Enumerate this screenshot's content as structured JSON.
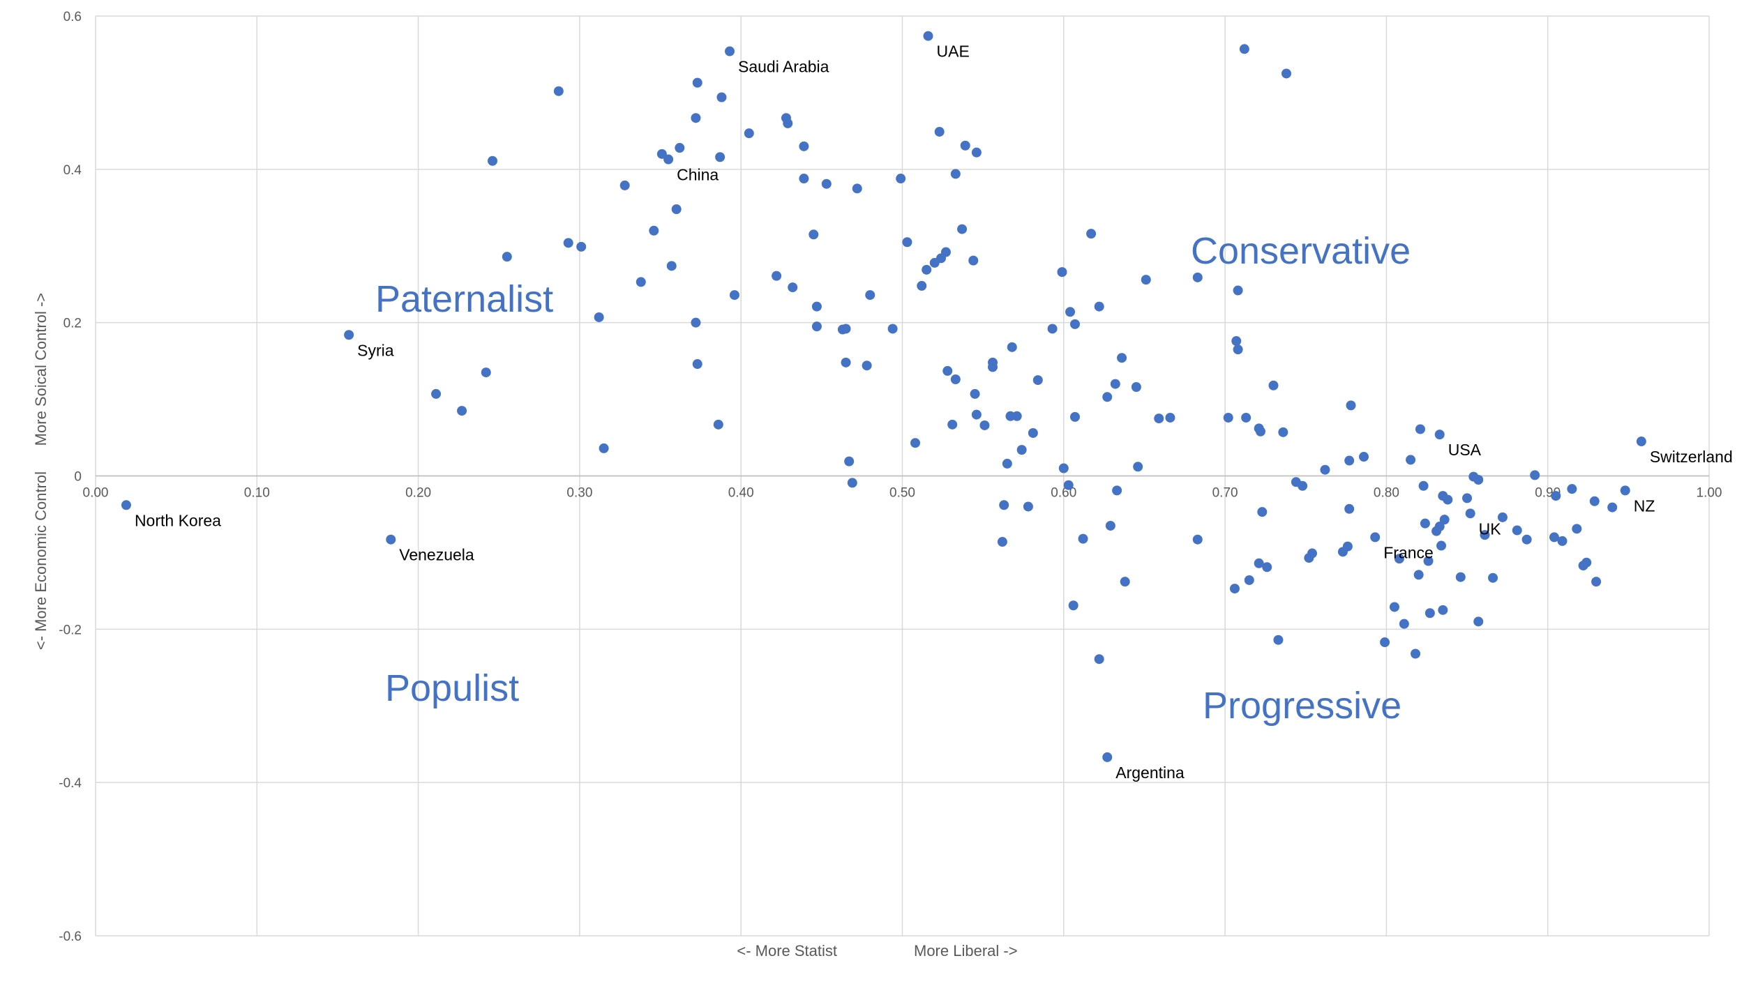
{
  "chart_data": {
    "type": "scatter",
    "xlabel_left": "<- More Statist",
    "xlabel_right": "More Liberal ->",
    "ylabel": "<- More Economic Control      More Soical Control ->",
    "xlim": [
      0.0,
      1.0
    ],
    "ylim": [
      -0.6,
      0.6
    ],
    "x_ticks": [
      "0.00",
      "0.10",
      "0.20",
      "0.30",
      "0.40",
      "0.50",
      "0.60",
      "0.70",
      "0.80",
      "0.90",
      "1.00"
    ],
    "y_ticks": [
      "0.6",
      "0.4",
      "0.2",
      "0",
      "-0.2",
      "-0.4",
      "-0.6"
    ],
    "grid": true,
    "marker_color": "#4472c4",
    "quadrant_labels": {
      "paternalist": "Paternalist",
      "conservative": "Conservative",
      "populist": "Populist",
      "progressive": "Progressive"
    },
    "labeled_points": [
      {
        "label": "North Korea",
        "x": 0.019,
        "y": -0.038
      },
      {
        "label": "Syria",
        "x": 0.157,
        "y": 0.184
      },
      {
        "label": "Venezuela",
        "x": 0.183,
        "y": -0.083
      },
      {
        "label": "Saudi Arabia",
        "x": 0.393,
        "y": 0.554
      },
      {
        "label": "China",
        "x": 0.355,
        "y": 0.413
      },
      {
        "label": "UAE",
        "x": 0.516,
        "y": 0.574
      },
      {
        "label": "Argentina",
        "x": 0.627,
        "y": -0.367
      },
      {
        "label": "USA",
        "x": 0.833,
        "y": 0.054
      },
      {
        "label": "Switzerland",
        "x": 0.958,
        "y": 0.045
      },
      {
        "label": "NZ",
        "x": 0.948,
        "y": -0.019
      },
      {
        "label": "UK",
        "x": 0.852,
        "y": -0.049
      },
      {
        "label": "France",
        "x": 0.793,
        "y": -0.08
      }
    ],
    "points": [
      [
        0.287,
        0.502
      ],
      [
        0.373,
        0.513
      ],
      [
        0.388,
        0.494
      ],
      [
        0.372,
        0.467
      ],
      [
        0.246,
        0.411
      ],
      [
        0.351,
        0.42
      ],
      [
        0.362,
        0.428
      ],
      [
        0.387,
        0.416
      ],
      [
        0.405,
        0.447
      ],
      [
        0.428,
        0.467
      ],
      [
        0.429,
        0.46
      ],
      [
        0.439,
        0.43
      ],
      [
        0.439,
        0.388
      ],
      [
        0.453,
        0.381
      ],
      [
        0.472,
        0.375
      ],
      [
        0.499,
        0.388
      ],
      [
        0.328,
        0.379
      ],
      [
        0.36,
        0.348
      ],
      [
        0.346,
        0.32
      ],
      [
        0.445,
        0.315
      ],
      [
        0.503,
        0.305
      ],
      [
        0.293,
        0.304
      ],
      [
        0.301,
        0.299
      ],
      [
        0.255,
        0.286
      ],
      [
        0.357,
        0.274
      ],
      [
        0.338,
        0.253
      ],
      [
        0.396,
        0.236
      ],
      [
        0.422,
        0.261
      ],
      [
        0.432,
        0.246
      ],
      [
        0.447,
        0.221
      ],
      [
        0.48,
        0.236
      ],
      [
        0.312,
        0.207
      ],
      [
        0.372,
        0.2
      ],
      [
        0.447,
        0.195
      ],
      [
        0.463,
        0.191
      ],
      [
        0.465,
        0.192
      ],
      [
        0.494,
        0.192
      ],
      [
        0.373,
        0.146
      ],
      [
        0.465,
        0.148
      ],
      [
        0.478,
        0.144
      ],
      [
        0.242,
        0.135
      ],
      [
        0.211,
        0.107
      ],
      [
        0.227,
        0.085
      ],
      [
        0.386,
        0.067
      ],
      [
        0.315,
        0.036
      ],
      [
        0.467,
        0.019
      ],
      [
        0.469,
        -0.009
      ],
      [
        0.508,
        0.043
      ],
      [
        0.523,
        0.449
      ],
      [
        0.539,
        0.431
      ],
      [
        0.546,
        0.422
      ],
      [
        0.533,
        0.394
      ],
      [
        0.537,
        0.322
      ],
      [
        0.527,
        0.292
      ],
      [
        0.524,
        0.284
      ],
      [
        0.52,
        0.278
      ],
      [
        0.544,
        0.281
      ],
      [
        0.515,
        0.269
      ],
      [
        0.512,
        0.248
      ],
      [
        0.556,
        0.148
      ],
      [
        0.556,
        0.142
      ],
      [
        0.568,
        0.168
      ],
      [
        0.528,
        0.137
      ],
      [
        0.533,
        0.126
      ],
      [
        0.545,
        0.107
      ],
      [
        0.546,
        0.08
      ],
      [
        0.531,
        0.067
      ],
      [
        0.551,
        0.066
      ],
      [
        0.567,
        0.078
      ],
      [
        0.571,
        0.078
      ],
      [
        0.581,
        0.056
      ],
      [
        0.584,
        0.125
      ],
      [
        0.593,
        0.192
      ],
      [
        0.574,
        0.034
      ],
      [
        0.565,
        0.016
      ],
      [
        0.599,
        0.266
      ],
      [
        0.604,
        0.214
      ],
      [
        0.607,
        0.198
      ],
      [
        0.617,
        0.316
      ],
      [
        0.622,
        0.221
      ],
      [
        0.627,
        0.103
      ],
      [
        0.632,
        0.12
      ],
      [
        0.636,
        0.154
      ],
      [
        0.645,
        0.116
      ],
      [
        0.607,
        0.077
      ],
      [
        0.6,
        0.01
      ],
      [
        0.603,
        -0.012
      ],
      [
        0.563,
        -0.038
      ],
      [
        0.578,
        -0.04
      ],
      [
        0.562,
        -0.086
      ],
      [
        0.612,
        -0.082
      ],
      [
        0.629,
        -0.065
      ],
      [
        0.633,
        -0.019
      ],
      [
        0.638,
        -0.138
      ],
      [
        0.606,
        -0.169
      ],
      [
        0.622,
        -0.239
      ],
      [
        0.651,
        0.256
      ],
      [
        0.659,
        0.075
      ],
      [
        0.666,
        0.076
      ],
      [
        0.646,
        0.012
      ],
      [
        0.683,
        0.259
      ],
      [
        0.708,
        0.242
      ],
      [
        0.707,
        0.176
      ],
      [
        0.708,
        0.165
      ],
      [
        0.702,
        0.076
      ],
      [
        0.713,
        0.076
      ],
      [
        0.721,
        0.062
      ],
      [
        0.722,
        0.058
      ],
      [
        0.73,
        0.118
      ],
      [
        0.736,
        0.057
      ],
      [
        0.712,
        0.557
      ],
      [
        0.738,
        0.525
      ],
      [
        0.683,
        -0.083
      ],
      [
        0.723,
        -0.047
      ],
      [
        0.706,
        -0.147
      ],
      [
        0.715,
        -0.136
      ],
      [
        0.721,
        -0.114
      ],
      [
        0.726,
        -0.119
      ],
      [
        0.733,
        -0.214
      ],
      [
        0.744,
        -0.008
      ],
      [
        0.748,
        -0.013
      ],
      [
        0.752,
        -0.107
      ],
      [
        0.754,
        -0.101
      ],
      [
        0.762,
        0.008
      ],
      [
        0.773,
        -0.099
      ],
      [
        0.776,
        -0.092
      ],
      [
        0.777,
        -0.043
      ],
      [
        0.777,
        0.02
      ],
      [
        0.778,
        0.092
      ],
      [
        0.786,
        0.025
      ],
      [
        0.799,
        -0.217
      ],
      [
        0.805,
        -0.171
      ],
      [
        0.808,
        -0.108
      ],
      [
        0.811,
        -0.193
      ],
      [
        0.815,
        0.021
      ],
      [
        0.818,
        -0.232
      ],
      [
        0.82,
        -0.129
      ],
      [
        0.821,
        0.061
      ],
      [
        0.823,
        -0.013
      ],
      [
        0.824,
        -0.062
      ],
      [
        0.826,
        -0.111
      ],
      [
        0.827,
        -0.179
      ],
      [
        0.831,
        -0.072
      ],
      [
        0.833,
        -0.066
      ],
      [
        0.834,
        -0.091
      ],
      [
        0.835,
        -0.026
      ],
      [
        0.838,
        -0.031
      ],
      [
        0.836,
        -0.057
      ],
      [
        0.835,
        -0.175
      ],
      [
        0.846,
        -0.132
      ],
      [
        0.85,
        -0.029
      ],
      [
        0.854,
        -0.001
      ],
      [
        0.857,
        -0.005
      ],
      [
        0.857,
        -0.19
      ],
      [
        0.861,
        -0.077
      ],
      [
        0.866,
        -0.133
      ],
      [
        0.872,
        -0.054
      ],
      [
        0.881,
        -0.071
      ],
      [
        0.887,
        -0.083
      ],
      [
        0.892,
        0.001
      ],
      [
        0.904,
        -0.08
      ],
      [
        0.905,
        -0.026
      ],
      [
        0.909,
        -0.085
      ],
      [
        0.915,
        -0.017
      ],
      [
        0.918,
        -0.069
      ],
      [
        0.922,
        -0.117
      ],
      [
        0.924,
        -0.113
      ],
      [
        0.929,
        -0.033
      ],
      [
        0.93,
        -0.138
      ],
      [
        0.94,
        -0.041
      ]
    ]
  }
}
